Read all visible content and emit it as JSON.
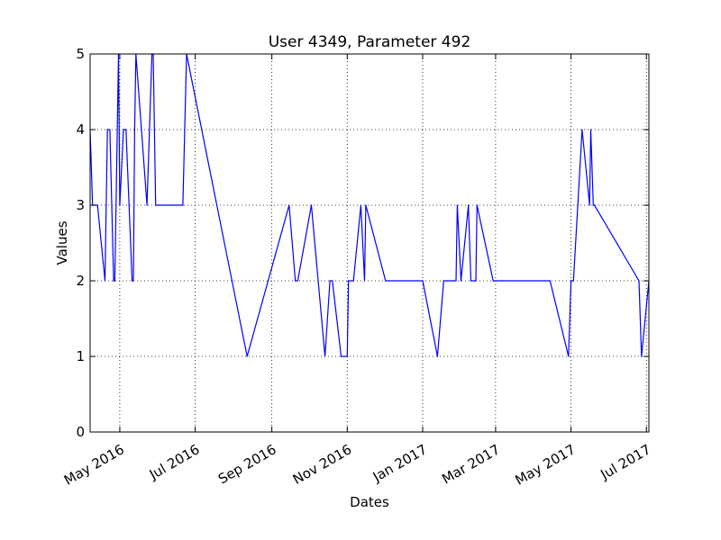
{
  "chart_data": {
    "type": "line",
    "title": "User 4349, Parameter 492",
    "xlabel": "Dates",
    "ylabel": "Values",
    "ylim": [
      0,
      5
    ],
    "xlim": [
      "2016-04-07",
      "2017-07-03"
    ],
    "grid": true,
    "y_ticks": [
      0,
      1,
      2,
      3,
      4,
      5
    ],
    "x_ticks": [
      {
        "date": "2016-05-01",
        "label": "May 2016"
      },
      {
        "date": "2016-07-01",
        "label": "Jul 2016"
      },
      {
        "date": "2016-09-01",
        "label": "Sep 2016"
      },
      {
        "date": "2016-11-01",
        "label": "Nov 2016"
      },
      {
        "date": "2017-01-01",
        "label": "Jan 2017"
      },
      {
        "date": "2017-03-01",
        "label": "Mar 2017"
      },
      {
        "date": "2017-05-01",
        "label": "May 2017"
      },
      {
        "date": "2017-07-01",
        "label": "Jul 2017"
      }
    ],
    "series": [
      {
        "color": "#0000ff",
        "x": [
          "2016-04-07",
          "2016-04-09",
          "2016-04-13",
          "2016-04-19",
          "2016-04-21",
          "2016-04-23",
          "2016-04-26",
          "2016-04-27",
          "2016-04-30",
          "2016-05-01",
          "2016-05-04",
          "2016-05-04",
          "2016-05-06",
          "2016-05-11",
          "2016-05-12",
          "2016-05-13",
          "2016-05-14",
          "2016-05-23",
          "2016-05-27",
          "2016-05-28",
          "2016-05-30",
          "2016-05-30",
          "2016-06-06",
          "2016-06-10",
          "2016-06-12",
          "2016-06-21",
          "2016-06-24",
          "2016-08-12",
          "2016-09-15",
          "2016-09-20",
          "2016-09-22",
          "2016-10-03",
          "2016-10-14",
          "2016-10-18",
          "2016-10-20",
          "2016-10-27",
          "2016-11-01",
          "2016-11-02",
          "2016-11-06",
          "2016-11-12",
          "2016-11-15",
          "2016-11-16",
          "2016-12-02",
          "2016-12-28",
          "2017-01-01",
          "2017-01-13",
          "2017-01-18",
          "2017-01-21",
          "2017-01-25",
          "2017-01-28",
          "2017-01-29",
          "2017-02-01",
          "2017-02-07",
          "2017-02-09",
          "2017-02-13",
          "2017-02-14",
          "2017-02-27",
          "2017-03-06",
          "2017-03-08",
          "2017-04-10",
          "2017-04-14",
          "2017-04-29",
          "2017-05-01",
          "2017-05-03",
          "2017-05-10",
          "2017-05-16",
          "2017-05-17",
          "2017-05-19",
          "2017-05-20",
          "2017-06-25",
          "2017-06-27",
          "2017-07-03"
        ],
        "values": [
          4,
          3,
          3,
          2,
          4,
          4,
          2,
          2,
          5,
          3,
          4,
          4,
          4,
          2,
          2,
          4,
          5,
          3,
          5,
          5,
          3,
          3,
          3,
          3,
          3,
          3,
          5,
          1,
          3,
          2,
          2,
          3,
          1,
          2,
          2,
          1,
          1,
          2,
          2,
          3,
          2,
          3,
          2,
          2,
          2,
          1,
          2,
          2,
          2,
          2,
          3,
          2,
          3,
          2,
          2,
          3,
          2,
          2,
          2,
          2,
          2,
          1,
          2,
          2,
          4,
          3,
          4,
          3,
          3,
          2,
          1,
          2
        ]
      }
    ]
  }
}
